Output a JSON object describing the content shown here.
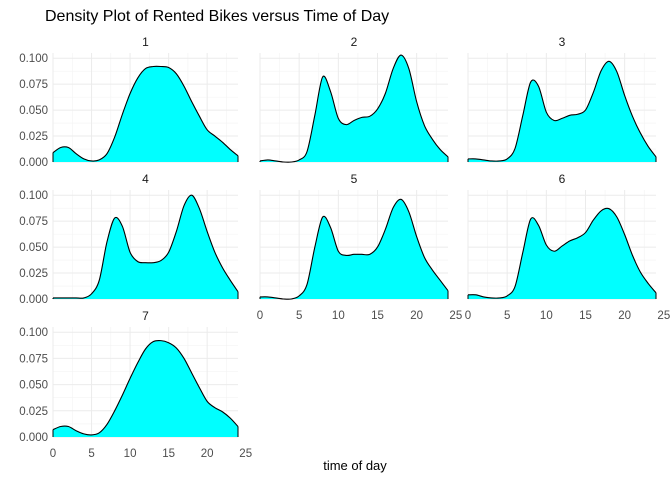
{
  "chart_data": {
    "type": "area",
    "title": "Density Plot of Rented Bikes versus Time of Day",
    "xlabel": "time of day",
    "ylabel": "",
    "xlim": [
      0,
      24
    ],
    "ylim": [
      0,
      0.105
    ],
    "x_ticks": [
      0,
      5,
      10,
      15,
      20,
      25
    ],
    "y_ticks": [
      0.0,
      0.025,
      0.05,
      0.075,
      0.1
    ],
    "y_tick_labels": [
      "0.000",
      "0.025",
      "0.050",
      "0.075",
      "0.100"
    ],
    "fill_color": "#00FFFF",
    "line_color": "#000000",
    "grid": true,
    "panels": [
      {
        "label": "1",
        "x": [
          0,
          1,
          2,
          3,
          4,
          5,
          6,
          7,
          8,
          9,
          10,
          11,
          12,
          13,
          14,
          15,
          16,
          17,
          18,
          19,
          20,
          21,
          22,
          23,
          24
        ],
        "values": [
          0.009,
          0.014,
          0.014,
          0.008,
          0.003,
          0.001,
          0.002,
          0.008,
          0.024,
          0.046,
          0.066,
          0.081,
          0.09,
          0.092,
          0.092,
          0.091,
          0.085,
          0.073,
          0.058,
          0.044,
          0.031,
          0.025,
          0.019,
          0.012,
          0.006
        ]
      },
      {
        "label": "2",
        "x": [
          0,
          1,
          2,
          3,
          4,
          5,
          6,
          7,
          8,
          9,
          10,
          11,
          12,
          13,
          14,
          15,
          16,
          17,
          18,
          19,
          20,
          21,
          22,
          23,
          24
        ],
        "values": [
          0.001,
          0.002,
          0.001,
          0.0,
          0.0,
          0.002,
          0.01,
          0.045,
          0.082,
          0.068,
          0.042,
          0.036,
          0.04,
          0.043,
          0.044,
          0.051,
          0.066,
          0.09,
          0.103,
          0.09,
          0.058,
          0.035,
          0.022,
          0.012,
          0.005
        ]
      },
      {
        "label": "3",
        "x": [
          0,
          1,
          2,
          3,
          4,
          5,
          6,
          7,
          8,
          9,
          10,
          11,
          12,
          13,
          14,
          15,
          16,
          17,
          18,
          19,
          20,
          21,
          22,
          23,
          24
        ],
        "values": [
          0.003,
          0.003,
          0.002,
          0.001,
          0.001,
          0.003,
          0.013,
          0.045,
          0.077,
          0.073,
          0.048,
          0.04,
          0.042,
          0.045,
          0.046,
          0.05,
          0.067,
          0.088,
          0.097,
          0.087,
          0.064,
          0.044,
          0.028,
          0.015,
          0.005
        ]
      },
      {
        "label": "4",
        "x": [
          0,
          1,
          2,
          3,
          4,
          5,
          6,
          7,
          8,
          9,
          10,
          11,
          12,
          13,
          14,
          15,
          16,
          17,
          18,
          19,
          20,
          21,
          22,
          23,
          24
        ],
        "values": [
          0.001,
          0.001,
          0.001,
          0.001,
          0.001,
          0.005,
          0.018,
          0.055,
          0.078,
          0.07,
          0.045,
          0.036,
          0.035,
          0.035,
          0.037,
          0.045,
          0.065,
          0.09,
          0.1,
          0.087,
          0.065,
          0.045,
          0.03,
          0.018,
          0.007
        ]
      },
      {
        "label": "5",
        "x": [
          0,
          1,
          2,
          3,
          4,
          5,
          6,
          7,
          8,
          9,
          10,
          11,
          12,
          13,
          14,
          15,
          16,
          17,
          18,
          19,
          20,
          21,
          22,
          23,
          24
        ],
        "values": [
          0.002,
          0.002,
          0.001,
          0.0,
          0.0,
          0.003,
          0.014,
          0.05,
          0.079,
          0.069,
          0.046,
          0.042,
          0.043,
          0.043,
          0.043,
          0.05,
          0.067,
          0.088,
          0.096,
          0.084,
          0.06,
          0.04,
          0.028,
          0.018,
          0.008
        ]
      },
      {
        "label": "6",
        "x": [
          0,
          1,
          2,
          3,
          4,
          5,
          6,
          7,
          8,
          9,
          10,
          11,
          12,
          13,
          14,
          15,
          16,
          17,
          18,
          19,
          20,
          21,
          22,
          23,
          24
        ],
        "values": [
          0.004,
          0.004,
          0.002,
          0.001,
          0.001,
          0.003,
          0.012,
          0.045,
          0.077,
          0.071,
          0.052,
          0.046,
          0.051,
          0.056,
          0.059,
          0.064,
          0.076,
          0.085,
          0.087,
          0.079,
          0.062,
          0.042,
          0.026,
          0.015,
          0.006
        ]
      },
      {
        "label": "7",
        "x": [
          0,
          1,
          2,
          3,
          4,
          5,
          6,
          7,
          8,
          9,
          10,
          11,
          12,
          13,
          14,
          15,
          16,
          17,
          18,
          19,
          20,
          21,
          22,
          23,
          24
        ],
        "values": [
          0.007,
          0.01,
          0.01,
          0.006,
          0.003,
          0.002,
          0.004,
          0.012,
          0.025,
          0.04,
          0.056,
          0.071,
          0.084,
          0.091,
          0.092,
          0.09,
          0.085,
          0.075,
          0.061,
          0.047,
          0.034,
          0.028,
          0.024,
          0.018,
          0.01
        ]
      }
    ]
  }
}
